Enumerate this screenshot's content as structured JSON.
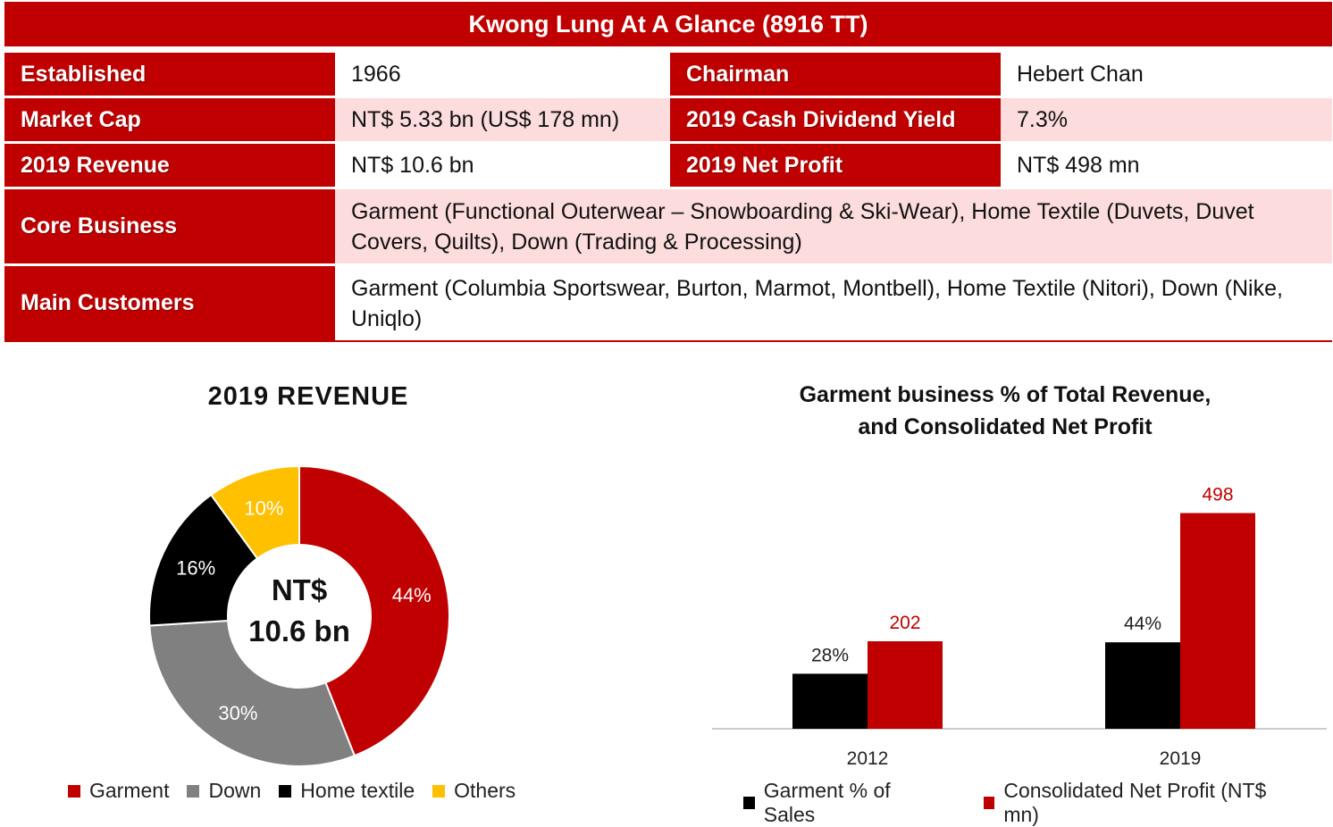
{
  "header": {
    "title": "Kwong Lung At A Glance (8916 TT)"
  },
  "table": {
    "established_label": "Established",
    "established_value": "1966",
    "chairman_label": "Chairman",
    "chairman_value": "Hebert Chan",
    "market_cap_label": "Market Cap",
    "market_cap_value": "NT$ 5.33 bn (US$ 178 mn)",
    "dividend_label": "2019 Cash Dividend Yield",
    "dividend_value": "7.3%",
    "revenue_label": "2019 Revenue",
    "revenue_value": "NT$ 10.6 bn",
    "net_profit_label": "2019 Net Profit",
    "net_profit_value": "NT$ 498 mn",
    "core_business_label": "Core Business",
    "core_business_value": "Garment (Functional Outerwear – Snowboarding & Ski-Wear), Home Textile (Duvets, Duvet Covers, Quilts), Down (Trading & Processing)",
    "main_customers_label": "Main Customers",
    "main_customers_value": "Garment (Columbia Sportswear, Burton, Marmot, Montbell), Home Textile (Nitori), Down (Nike, Uniqlo)"
  },
  "chart_data": [
    {
      "type": "pie",
      "title": "2019 REVENUE",
      "center_label_line1": "NT$",
      "center_label_line2": "10.6 bn",
      "slices": [
        {
          "name": "Garment",
          "value": 44,
          "label": "44%",
          "color": "#c00000"
        },
        {
          "name": "Down",
          "value": 30,
          "label": "30%",
          "color": "#808080"
        },
        {
          "name": "Home textile",
          "value": 16,
          "label": "16%",
          "color": "#000000"
        },
        {
          "name": "Others",
          "value": 10,
          "label": "10%",
          "color": "#ffc000"
        }
      ]
    },
    {
      "type": "bar",
      "title_line1": "Garment business % of Total Revenue,",
      "title_line2": "and Consolidated Net Profit",
      "categories": [
        "2012",
        "2019"
      ],
      "series": [
        {
          "name": "Garment % of Sales",
          "values": [
            28,
            44
          ],
          "labels": [
            "28%",
            "44%"
          ],
          "color": "#000000",
          "label_color": "#222222"
        },
        {
          "name": "Consolidated Net Profit (NT$ mn)",
          "values": [
            202,
            498
          ],
          "labels": [
            "202",
            "498"
          ],
          "color": "#c00000",
          "label_color": "#c00000"
        }
      ]
    }
  ]
}
